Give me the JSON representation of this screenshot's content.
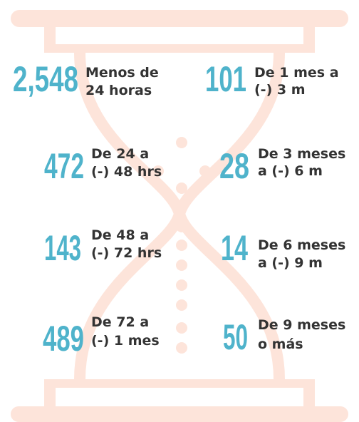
{
  "items": [
    {
      "value": "2,548",
      "label": [
        "Menos de",
        "24 horas"
      ]
    },
    {
      "value": "101",
      "label": [
        "De 1 mes a",
        "(-) 3 m"
      ]
    },
    {
      "value": "472",
      "label": [
        "De 24 a",
        "(-) 48 hrs"
      ]
    },
    {
      "value": "28",
      "label": [
        "De 3 meses",
        "a (-) 6 m"
      ]
    },
    {
      "value": "143",
      "label": [
        "De 48 a",
        "(-) 72 hrs"
      ]
    },
    {
      "value": "14",
      "label": [
        "De 6 meses",
        "a (-) 9 m"
      ]
    },
    {
      "value": "489",
      "label": [
        "De 72 a",
        "(-) 1 mes"
      ]
    },
    {
      "value": "50",
      "label": [
        "De 9 meses",
        "o más"
      ]
    }
  ]
}
